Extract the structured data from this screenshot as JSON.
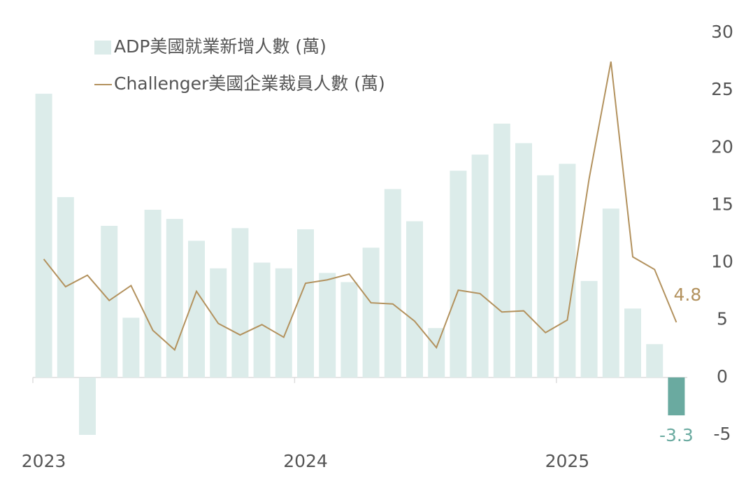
{
  "chart_data": {
    "type": "bar_line",
    "categories": [
      "2023",
      null,
      null,
      null,
      null,
      null,
      null,
      null,
      null,
      null,
      null,
      null,
      "2024",
      null,
      null,
      null,
      null,
      null,
      null,
      null,
      null,
      null,
      null,
      null,
      "2025",
      null,
      null,
      null,
      null,
      null
    ],
    "series": [
      {
        "name": "ADP美國就業新增人數 (萬)",
        "type": "bar",
        "color": "#dcecea",
        "highlight_color": "#6aaaa0",
        "values": [
          24.7,
          15.7,
          -5.0,
          13.2,
          5.2,
          14.6,
          13.8,
          11.9,
          9.5,
          13.0,
          10.0,
          9.5,
          12.9,
          9.1,
          8.3,
          11.3,
          16.4,
          13.6,
          4.3,
          18.0,
          19.4,
          22.1,
          20.4,
          17.6,
          18.6,
          8.4,
          14.7,
          6.0,
          2.9,
          -3.3
        ]
      },
      {
        "name": "Challenger美國企業裁員人數 (萬)",
        "type": "line",
        "color": "#b3925e",
        "values": [
          10.3,
          7.9,
          8.9,
          6.7,
          8.0,
          4.1,
          2.4,
          7.5,
          4.7,
          3.7,
          4.6,
          3.5,
          8.2,
          8.5,
          9.0,
          6.5,
          6.4,
          4.9,
          2.6,
          7.6,
          7.3,
          5.7,
          5.8,
          3.9,
          5.0,
          17.3,
          27.5,
          10.5,
          9.4,
          4.8
        ]
      }
    ],
    "ylim": [
      -5,
      30
    ],
    "yticks": [
      -5,
      0,
      5,
      10,
      15,
      20,
      25,
      30
    ],
    "grid": false
  }
}
